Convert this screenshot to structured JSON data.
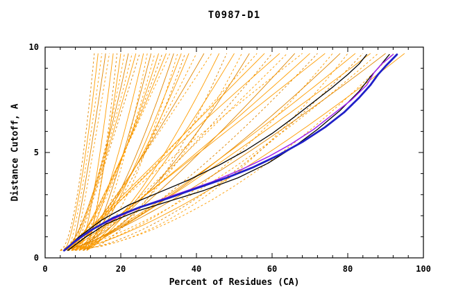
{
  "chart_data": {
    "type": "line",
    "title": "T0987-D1",
    "xlabel": "Percent of Residues (CA)",
    "ylabel": "Distance Cutoff, A",
    "xlim": [
      0,
      100
    ],
    "ylim": [
      0,
      10
    ],
    "xticks": [
      0,
      20,
      40,
      60,
      80,
      100
    ],
    "yticks": [
      0,
      5,
      10
    ],
    "x_minor_step": 4,
    "y_minor_step": 1,
    "grid": false,
    "legend": "none",
    "y_start": 0.35,
    "y_end": 9.7,
    "colors": {
      "ensemble": "#ff9d00",
      "ensemble_dark": "#e08600",
      "blue": "#2020c8",
      "black": "#000000",
      "purple": "#a020f0",
      "frame": "#000000",
      "background": "#ffffff"
    },
    "ensemble_curves": [
      [
        4,
        13,
        0.55,
        1
      ],
      [
        5,
        14,
        0.65,
        0
      ],
      [
        6,
        15,
        0.75,
        1
      ],
      [
        7,
        16,
        0.85,
        0
      ],
      [
        8,
        17,
        0.95,
        1
      ],
      [
        9,
        18,
        0.7,
        0
      ],
      [
        10,
        19,
        0.6,
        1
      ],
      [
        11,
        20,
        0.8,
        0
      ],
      [
        4,
        21,
        0.55,
        1
      ],
      [
        5,
        22,
        0.65,
        0
      ],
      [
        6,
        23,
        0.75,
        1
      ],
      [
        7,
        24,
        0.85,
        0
      ],
      [
        8,
        25,
        0.95,
        1
      ],
      [
        9,
        26,
        0.7,
        0
      ],
      [
        10,
        27,
        0.6,
        1
      ],
      [
        11,
        28,
        0.8,
        0
      ],
      [
        4,
        29,
        0.55,
        1
      ],
      [
        5,
        30,
        0.65,
        0
      ],
      [
        6,
        31,
        0.75,
        1
      ],
      [
        7,
        32,
        0.85,
        0
      ],
      [
        8,
        33,
        0.95,
        1
      ],
      [
        9,
        34,
        0.7,
        0
      ],
      [
        10,
        35,
        0.6,
        1
      ],
      [
        11,
        36,
        0.8,
        0
      ],
      [
        4,
        37,
        0.55,
        1
      ],
      [
        5,
        38,
        0.65,
        0
      ],
      [
        6,
        40,
        0.75,
        1
      ],
      [
        7,
        42,
        0.85,
        0
      ],
      [
        8,
        44,
        0.95,
        1
      ],
      [
        9,
        46,
        0.7,
        0
      ],
      [
        10,
        48,
        0.6,
        1
      ],
      [
        11,
        50,
        0.8,
        0
      ],
      [
        4,
        52,
        0.55,
        1
      ],
      [
        5,
        54,
        0.65,
        0
      ],
      [
        5,
        56,
        0.9,
        1
      ],
      [
        6,
        58,
        1.0,
        0
      ],
      [
        7,
        60,
        0.8,
        1
      ],
      [
        8,
        62,
        1.1,
        0
      ],
      [
        9,
        64,
        0.95,
        1
      ],
      [
        10,
        66,
        0.85,
        0
      ],
      [
        5,
        68,
        1.05,
        1
      ],
      [
        6,
        70,
        0.9,
        0
      ],
      [
        7,
        72,
        0.75,
        1
      ],
      [
        8,
        74,
        1.0,
        0
      ],
      [
        4,
        76,
        0.6,
        1
      ],
      [
        5,
        78,
        0.75,
        0
      ],
      [
        6,
        80,
        0.55,
        1
      ],
      [
        7,
        82,
        0.85,
        0
      ],
      [
        8,
        84,
        0.65,
        1
      ],
      [
        9,
        86,
        0.9,
        0
      ],
      [
        4,
        88,
        0.7,
        1
      ],
      [
        5,
        90,
        0.8,
        0
      ],
      [
        6,
        92,
        0.6,
        1
      ],
      [
        7,
        95,
        0.75,
        0
      ]
    ],
    "highlight_series": [
      {
        "name": "model-black-1",
        "color": "#000000",
        "width": 1.3,
        "points": [
          [
            5,
            0.35
          ],
          [
            9,
            1.0
          ],
          [
            15,
            1.8
          ],
          [
            22,
            2.5
          ],
          [
            30,
            3.1
          ],
          [
            38,
            3.7
          ],
          [
            46,
            4.4
          ],
          [
            53,
            5.1
          ],
          [
            60,
            5.9
          ],
          [
            66,
            6.7
          ],
          [
            71,
            7.4
          ],
          [
            76,
            8.1
          ],
          [
            80,
            8.7
          ],
          [
            83,
            9.2
          ],
          [
            85,
            9.65
          ]
        ]
      },
      {
        "name": "model-black-2",
        "color": "#000000",
        "width": 1.3,
        "points": [
          [
            6,
            0.35
          ],
          [
            10,
            0.9
          ],
          [
            16,
            1.6
          ],
          [
            24,
            2.2
          ],
          [
            33,
            2.7
          ],
          [
            42,
            3.2
          ],
          [
            51,
            3.8
          ],
          [
            59,
            4.5
          ],
          [
            66,
            5.3
          ],
          [
            72,
            6.1
          ],
          [
            78,
            7.0
          ],
          [
            83,
            7.9
          ],
          [
            86,
            8.6
          ],
          [
            88,
            9.0
          ],
          [
            91,
            9.65
          ]
        ]
      },
      {
        "name": "model-purple",
        "color": "#a020f0",
        "width": 1.5,
        "points": [
          [
            5,
            0.35
          ],
          [
            9,
            0.9
          ],
          [
            14,
            1.5
          ],
          [
            20,
            2.0
          ],
          [
            28,
            2.6
          ],
          [
            36,
            3.1
          ],
          [
            44,
            3.6
          ],
          [
            52,
            4.2
          ],
          [
            59,
            4.8
          ],
          [
            65,
            5.4
          ],
          [
            71,
            6.1
          ],
          [
            76,
            6.8
          ],
          [
            81,
            7.5
          ],
          [
            85,
            8.2
          ],
          [
            87,
            8.8
          ],
          [
            89,
            9.2
          ],
          [
            92,
            9.65
          ]
        ]
      },
      {
        "name": "model-blue",
        "color": "#2020c8",
        "width": 2.8,
        "points": [
          [
            5,
            0.35
          ],
          [
            8,
            0.8
          ],
          [
            12,
            1.3
          ],
          [
            18,
            1.9
          ],
          [
            25,
            2.4
          ],
          [
            32,
            2.8
          ],
          [
            40,
            3.3
          ],
          [
            48,
            3.8
          ],
          [
            55,
            4.3
          ],
          [
            62,
            4.9
          ],
          [
            68,
            5.5
          ],
          [
            74,
            6.2
          ],
          [
            79,
            6.9
          ],
          [
            83,
            7.6
          ],
          [
            86,
            8.2
          ],
          [
            88,
            8.7
          ],
          [
            90,
            9.1
          ],
          [
            93,
            9.65
          ]
        ]
      }
    ]
  }
}
